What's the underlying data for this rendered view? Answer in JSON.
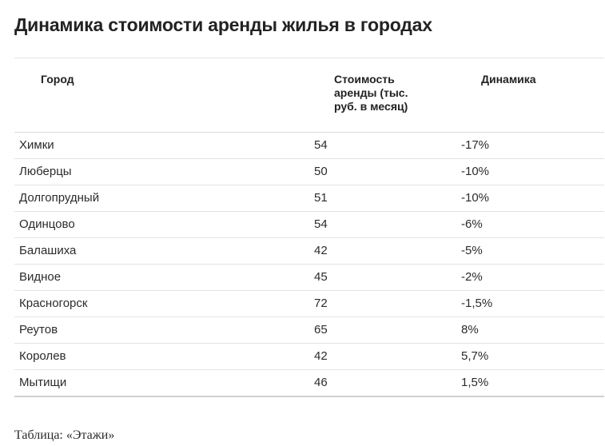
{
  "title": "Динамика стоимости аренды жилья в городах",
  "table": {
    "headers": {
      "city": "Город",
      "cost": "Стоимость аренды (тыс. руб. в месяц)",
      "dynamics": "Динамика"
    },
    "rows": [
      {
        "city": "Химки",
        "cost": "54",
        "dynamics": "-17%"
      },
      {
        "city": "Люберцы",
        "cost": "50",
        "dynamics": "-10%"
      },
      {
        "city": "Долгопрудный",
        "cost": "51",
        "dynamics": "-10%"
      },
      {
        "city": "Одинцово",
        "cost": "54",
        "dynamics": "-6%"
      },
      {
        "city": "Балашиха",
        "cost": "42",
        "dynamics": "-5%"
      },
      {
        "city": "Видное",
        "cost": "45",
        "dynamics": "-2%"
      },
      {
        "city": "Красногорск",
        "cost": "72",
        "dynamics": "-1,5%"
      },
      {
        "city": "Реутов",
        "cost": "65",
        "dynamics": "8%"
      },
      {
        "city": "Королев",
        "cost": "42",
        "dynamics": "5,7%"
      },
      {
        "city": "Мытищи",
        "cost": "46",
        "dynamics": "1,5%"
      }
    ]
  },
  "source": "Таблица: «Этажи»"
}
